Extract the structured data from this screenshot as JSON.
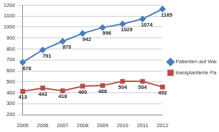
{
  "chart_data": {
    "type": "line",
    "categories": [
      "2005",
      "2006",
      "2007",
      "2008",
      "2009",
      "2010",
      "2011",
      "2012"
    ],
    "series": [
      {
        "name": "Patienten auf Warteliste",
        "color": "#4a7ebb",
        "marker": "diamond",
        "values": [
          678,
          791,
          870,
          942,
          996,
          1029,
          1074,
          1165
        ]
      },
      {
        "name": "transplantierte Patienten",
        "color": "#be4b48",
        "marker": "square",
        "values": [
          413,
          443,
          418,
          460,
          466,
          504,
          504,
          453
        ]
      }
    ],
    "ylim": [
      200,
      1200
    ],
    "yticks": [
      200,
      300,
      400,
      500,
      600,
      700,
      800,
      900,
      1000,
      1100,
      1200
    ],
    "grid": true,
    "legend": "right",
    "data_labels": true
  }
}
